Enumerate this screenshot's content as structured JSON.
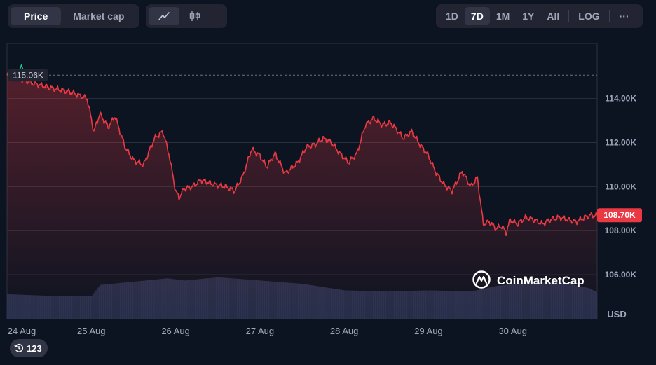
{
  "toolbar": {
    "left_tabs": [
      {
        "label": "Price",
        "active": true
      },
      {
        "label": "Market cap",
        "active": false
      }
    ],
    "chart_type_icons": [
      {
        "icon": "line-chart-icon",
        "active": true
      },
      {
        "icon": "candlestick-icon",
        "active": false
      }
    ],
    "range_tabs": [
      {
        "label": "1D",
        "active": false
      },
      {
        "label": "7D",
        "active": true
      },
      {
        "label": "1M",
        "active": false
      },
      {
        "label": "1Y",
        "active": false
      },
      {
        "label": "All",
        "active": false
      }
    ],
    "log_label": "LOG",
    "more_label": "···"
  },
  "brand": {
    "name": "CoinMarketCap"
  },
  "history_badge": {
    "count": "123"
  },
  "colors": {
    "line": "#ea3943",
    "high_marker": "#16c784",
    "volume": "#2a3350",
    "current_badge": "#ea3943",
    "grid": "#2a2f3d",
    "background": "#0d1421"
  },
  "chart_data": {
    "type": "line",
    "title": "",
    "x_tick_labels": [
      "24 Aug",
      "25 Aug",
      "26 Aug",
      "27 Aug",
      "28 Aug",
      "29 Aug",
      "30 Aug"
    ],
    "y_tick_labels": [
      "114.00K",
      "112.00K",
      "110.00K",
      "108.00K",
      "106.00K"
    ],
    "y_unit": "USD",
    "ylim": [
      104000,
      116500
    ],
    "xlim_days": [
      0,
      7
    ],
    "high_label": "115.06K",
    "high_value": 115060,
    "current_label": "108.70K",
    "current_value": 108700,
    "grid": true,
    "price_series": {
      "x_days": [
        0,
        0.04,
        0.15,
        0.3,
        0.5,
        0.75,
        0.95,
        1.03,
        1.1,
        1.2,
        1.28,
        1.4,
        1.5,
        1.62,
        1.75,
        1.85,
        1.92,
        2.0,
        2.04,
        2.1,
        2.2,
        2.3,
        2.45,
        2.6,
        2.7,
        2.8,
        2.9,
        3.0,
        3.08,
        3.18,
        3.3,
        3.45,
        3.55,
        3.65,
        3.75,
        3.85,
        3.95,
        4.05,
        4.15,
        4.25,
        4.35,
        4.45,
        4.55,
        4.62,
        4.7,
        4.8,
        4.9,
        5.0,
        5.08,
        5.18,
        5.28,
        5.4,
        5.5,
        5.58,
        5.65,
        5.72,
        5.8,
        5.87,
        5.92,
        5.97,
        6.05,
        6.15,
        6.25,
        6.35,
        6.45,
        6.55,
        6.65,
        6.75,
        6.85,
        6.92,
        7.0
      ],
      "values": [
        115060,
        115000,
        114900,
        114700,
        114500,
        114300,
        114000,
        112500,
        113300,
        112700,
        113200,
        111800,
        111200,
        111000,
        112200,
        112500,
        111500,
        109800,
        109500,
        109900,
        110000,
        110300,
        110100,
        110000,
        109800,
        110500,
        111700,
        111400,
        110900,
        111500,
        110600,
        111100,
        111800,
        111900,
        112200,
        112000,
        111500,
        111100,
        111500,
        112800,
        113100,
        112800,
        112900,
        112600,
        112200,
        112500,
        111900,
        111400,
        110700,
        110100,
        109800,
        110700,
        110000,
        110400,
        108300,
        108400,
        108100,
        108200,
        107900,
        108500,
        108300,
        108600,
        108500,
        108300,
        108500,
        108600,
        108500,
        108400,
        108600,
        108700,
        108700
      ]
    },
    "volume_series": {
      "x_days": [
        0,
        0.5,
        1.0,
        1.1,
        1.5,
        1.9,
        2.1,
        2.5,
        3.0,
        3.5,
        4.0,
        4.5,
        5.0,
        5.5,
        5.8,
        6.2,
        6.6,
        6.9,
        7.0
      ],
      "values": [
        0.45,
        0.42,
        0.42,
        0.62,
        0.68,
        0.74,
        0.7,
        0.76,
        0.7,
        0.64,
        0.52,
        0.5,
        0.52,
        0.5,
        0.6,
        0.68,
        0.66,
        0.56,
        0.48
      ]
    }
  }
}
